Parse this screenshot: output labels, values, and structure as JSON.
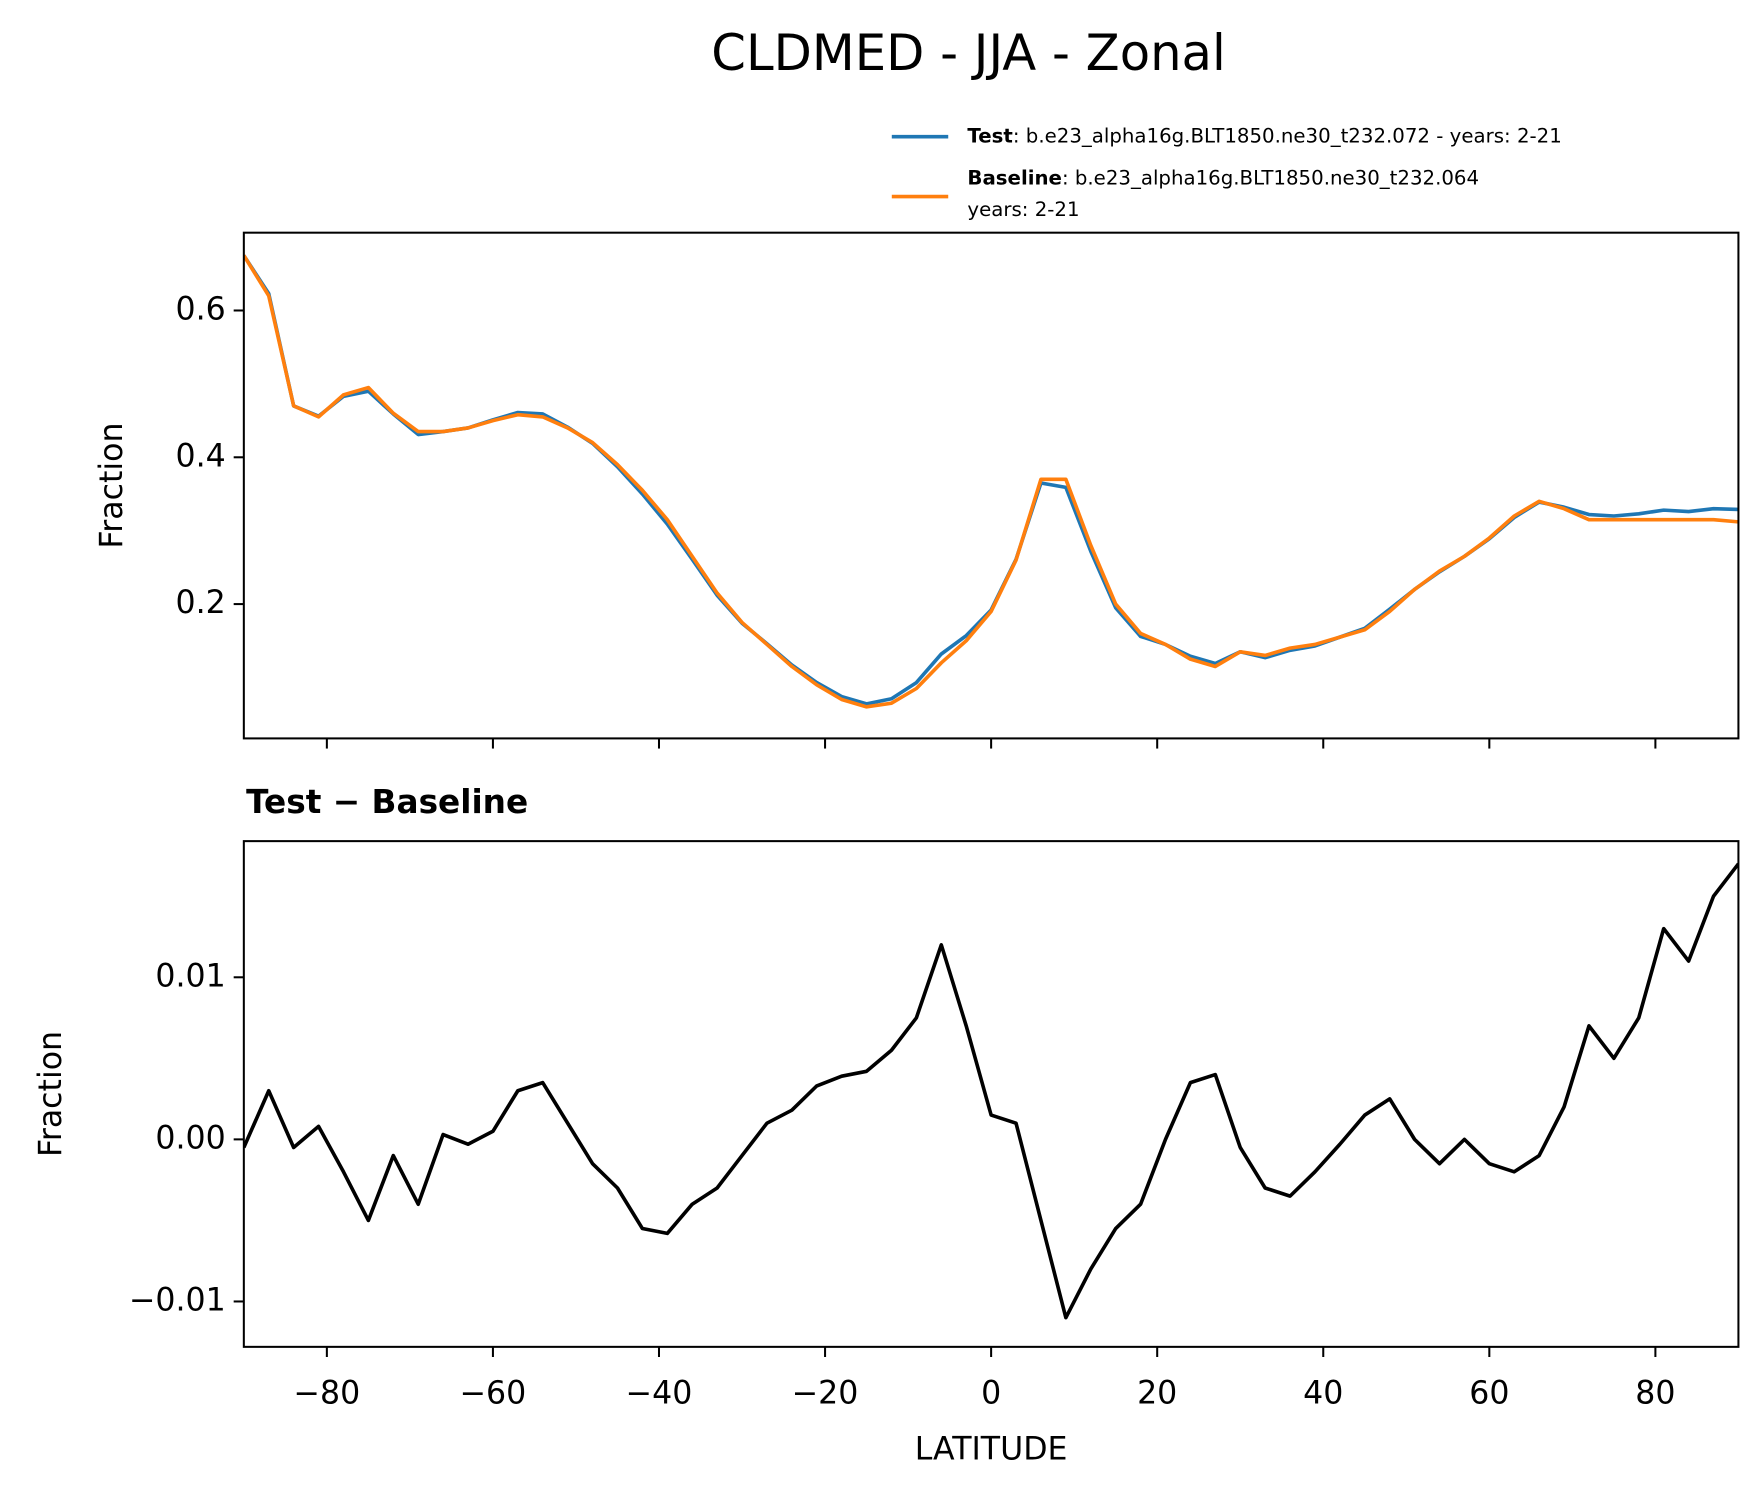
{
  "title": "CLDMED - JJA - Zonal",
  "chart_data": [
    {
      "type": "line",
      "ylabel": "Fraction",
      "x": [
        -90,
        -87,
        -84,
        -81,
        -78,
        -75,
        -72,
        -69,
        -66,
        -63,
        -60,
        -57,
        -54,
        -51,
        -48,
        -45,
        -42,
        -39,
        -36,
        -33,
        -30,
        -27,
        -24,
        -21,
        -18,
        -15,
        -12,
        -9,
        -6,
        -3,
        0,
        3,
        6,
        9,
        12,
        15,
        18,
        21,
        24,
        27,
        30,
        33,
        36,
        39,
        42,
        45,
        48,
        51,
        54,
        57,
        60,
        63,
        66,
        69,
        72,
        75,
        78,
        81,
        84,
        87,
        90
      ],
      "series": [
        {
          "name": "Test",
          "description": [
            ": b.e23_alpha16g.BLT1850.ne30_t232.072 - years: 2-21"
          ],
          "color": "#1f77b4",
          "values": [
            0.675,
            0.623,
            0.47,
            0.456,
            0.483,
            0.49,
            0.459,
            0.431,
            0.435,
            0.44,
            0.451,
            0.461,
            0.459,
            0.441,
            0.419,
            0.387,
            0.35,
            0.309,
            0.261,
            0.212,
            0.174,
            0.146,
            0.117,
            0.093,
            0.074,
            0.064,
            0.071,
            0.093,
            0.132,
            0.157,
            0.192,
            0.261,
            0.365,
            0.359,
            0.272,
            0.195,
            0.156,
            0.145,
            0.129,
            0.119,
            0.135,
            0.127,
            0.137,
            0.143,
            0.155,
            0.167,
            0.193,
            0.22,
            0.244,
            0.265,
            0.289,
            0.318,
            0.339,
            0.332,
            0.322,
            0.32,
            0.323,
            0.328,
            0.326,
            0.33,
            0.329
          ]
        },
        {
          "name": "Baseline",
          "description": [
            ": b.e23_alpha16g.BLT1850.ne30_t232.064",
            "years: 2-21"
          ],
          "color": "#ff7f0e",
          "values": [
            0.675,
            0.62,
            0.47,
            0.455,
            0.485,
            0.495,
            0.46,
            0.435,
            0.435,
            0.44,
            0.45,
            0.458,
            0.455,
            0.44,
            0.42,
            0.39,
            0.355,
            0.315,
            0.265,
            0.215,
            0.175,
            0.145,
            0.115,
            0.09,
            0.07,
            0.06,
            0.065,
            0.085,
            0.12,
            0.15,
            0.19,
            0.26,
            0.37,
            0.37,
            0.28,
            0.2,
            0.16,
            0.145,
            0.125,
            0.115,
            0.135,
            0.13,
            0.14,
            0.145,
            0.155,
            0.165,
            0.19,
            0.22,
            0.245,
            0.265,
            0.29,
            0.32,
            0.34,
            0.33,
            0.315,
            0.315,
            0.315,
            0.315,
            0.315,
            0.315,
            0.312
          ]
        }
      ],
      "xlim": [
        -90,
        90
      ],
      "xticks": [
        -80,
        -60,
        -40,
        -20,
        0,
        20,
        40,
        60,
        80
      ],
      "ylim": [
        0.017,
        0.706
      ],
      "yticks": [
        0.2,
        0.4,
        0.6
      ]
    },
    {
      "type": "line",
      "title": "Test − Baseline",
      "xlabel": "LATITUDE",
      "ylabel": "Fraction",
      "x": [
        -90,
        -87,
        -84,
        -81,
        -78,
        -75,
        -72,
        -69,
        -66,
        -63,
        -60,
        -57,
        -54,
        -51,
        -48,
        -45,
        -42,
        -39,
        -36,
        -33,
        -30,
        -27,
        -24,
        -21,
        -18,
        -15,
        -12,
        -9,
        -6,
        -3,
        0,
        3,
        6,
        9,
        12,
        15,
        18,
        21,
        24,
        27,
        30,
        33,
        36,
        39,
        42,
        45,
        48,
        51,
        54,
        57,
        60,
        63,
        66,
        69,
        72,
        75,
        78,
        81,
        84,
        87,
        90
      ],
      "series": [
        {
          "color": "#000000",
          "values": [
            -0.0005,
            0.003,
            -0.0005,
            0.0008,
            -0.002,
            -0.005,
            -0.001,
            -0.004,
            0.0003,
            -0.0003,
            0.0005,
            0.003,
            0.0035,
            0.001,
            -0.0015,
            -0.003,
            -0.0055,
            -0.0058,
            -0.004,
            -0.003,
            -0.001,
            0.001,
            0.0018,
            0.0033,
            0.0039,
            0.0042,
            0.0055,
            0.0075,
            0.012,
            0.007,
            0.0015,
            0.001,
            -0.005,
            -0.011,
            -0.008,
            -0.0055,
            -0.004,
            0.0,
            0.0035,
            0.004,
            -0.0005,
            -0.003,
            -0.0035,
            -0.002,
            -0.0003,
            0.0015,
            0.0025,
            0.0,
            -0.0015,
            0.0,
            -0.0015,
            -0.002,
            -0.001,
            0.002,
            0.007,
            0.005,
            0.0075,
            0.013,
            0.011,
            0.015,
            0.017
          ]
        }
      ],
      "xlim": [
        -90,
        90
      ],
      "xticks": [
        {
          "value": -80,
          "label": "−80"
        },
        {
          "value": -60,
          "label": "−60"
        },
        {
          "value": -40,
          "label": "−40"
        },
        {
          "value": -20,
          "label": "−20"
        },
        0,
        20,
        40,
        60,
        80
      ],
      "ylim": [
        -0.0128,
        0.0184
      ],
      "yticks": [
        {
          "value": -0.01,
          "label": "−0.01"
        },
        {
          "value": 0,
          "label": "0.00"
        },
        0.01
      ]
    }
  ]
}
